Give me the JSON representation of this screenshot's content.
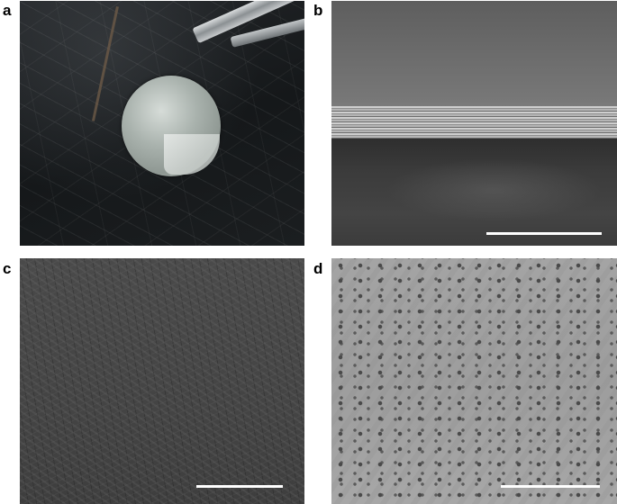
{
  "figure": {
    "panels": [
      {
        "label": "a",
        "content": "photograph"
      },
      {
        "label": "b",
        "content": "sem-cross-section",
        "has_scale_bar": true
      },
      {
        "label": "c",
        "content": "sem-surface",
        "has_scale_bar": true
      },
      {
        "label": "d",
        "content": "sem-surface",
        "has_scale_bar": true
      }
    ],
    "scale_bar_color": "#ffffff",
    "label_color": "#000000"
  }
}
